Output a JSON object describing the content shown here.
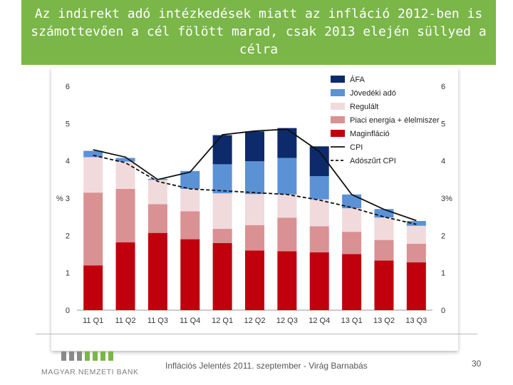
{
  "slide": {
    "title_lines": [
      "Az indirekt adó intézkedések miatt az infláció 2012-ben is",
      "számottevően a cél fölött marad, csak 2013 elején süllyed a",
      "célra"
    ],
    "footer_text": "Inflációs Jelentés 2011. szeptember - Virág Barnabás",
    "page_number": "30",
    "logo_text": "MAGYAR NEMZETI BANK"
  },
  "chart_data": {
    "type": "bar",
    "stacked": true,
    "categories": [
      "11 Q1",
      "11 Q2",
      "11 Q3",
      "11 Q4",
      "12 Q1",
      "12 Q2",
      "12 Q3",
      "12 Q4",
      "13 Q1",
      "13 Q2",
      "13 Q3"
    ],
    "series": [
      {
        "name": "Maginfláció",
        "color": "#c0000c",
        "values": [
          1.2,
          1.82,
          2.07,
          1.9,
          1.8,
          1.6,
          1.58,
          1.55,
          1.5,
          1.33,
          1.28
        ]
      },
      {
        "name": "Piaci energia + élelmiszer",
        "color": "#d99193",
        "values": [
          1.95,
          1.43,
          0.77,
          0.75,
          0.38,
          0.68,
          0.9,
          0.7,
          0.6,
          0.55,
          0.5
        ]
      },
      {
        "name": "Regulált",
        "color": "#f1dadc",
        "values": [
          0.95,
          0.73,
          0.65,
          0.6,
          0.95,
          0.83,
          0.62,
          0.72,
          0.63,
          0.6,
          0.48
        ]
      },
      {
        "name": "Jövedéki adó",
        "color": "#5b92d6",
        "values": [
          0.17,
          0.1,
          0.03,
          0.48,
          0.78,
          0.88,
          0.98,
          0.62,
          0.37,
          0.23,
          0.13
        ]
      },
      {
        "name": "ÁFA",
        "color": "#0d2a6b",
        "values": [
          0,
          0,
          0,
          0,
          0.78,
          0.8,
          0.8,
          0.8,
          0,
          0,
          0
        ]
      }
    ],
    "lines": [
      {
        "name": "CPI",
        "style": "solid",
        "color": "#111111",
        "values": [
          4.3,
          4.1,
          3.5,
          3.7,
          4.7,
          4.8,
          4.85,
          4.25,
          3.1,
          2.7,
          2.4
        ]
      },
      {
        "name": "Adószűrt CPI",
        "style": "dashed",
        "color": "#111111",
        "values": [
          4.15,
          3.95,
          3.45,
          3.25,
          3.2,
          3.15,
          3.1,
          2.95,
          2.75,
          2.5,
          2.3
        ]
      }
    ],
    "ylim": [
      0,
      6
    ],
    "yticks": [
      0,
      1,
      2,
      3,
      4,
      5,
      6
    ],
    "ytick_labels_left": [
      "0",
      "1",
      "2",
      "% 3",
      "4",
      "5",
      "6"
    ],
    "ytick_labels_right": [
      "0",
      "1",
      "2",
      "3%",
      "4",
      "5",
      "6"
    ],
    "legend_position": "top-right",
    "legend": [
      "ÁFA",
      "Jövedéki adó",
      "Regulált",
      "Piaci energia + élelmiszer",
      "Maginfláció",
      "CPI",
      "Adószűrt CPI"
    ]
  }
}
